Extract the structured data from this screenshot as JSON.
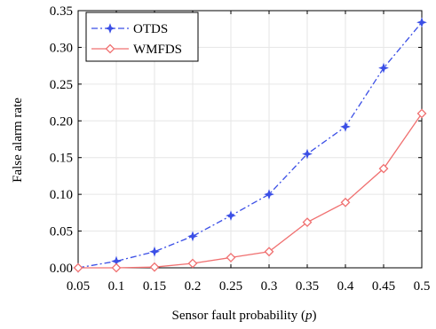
{
  "chart_data": {
    "type": "line",
    "title": "",
    "xlabel": "Sensor fault probability (",
    "xlabel_var": "p",
    "xlabel_end": ")",
    "ylabel": "False alarm rate",
    "x": [
      0.05,
      0.1,
      0.15,
      0.2,
      0.25,
      0.3,
      0.35,
      0.4,
      0.45,
      0.5
    ],
    "xticks": [
      "0.05",
      "0.1",
      "0.15",
      "0.2",
      "0.25",
      "0.3",
      "0.35",
      "0.4",
      "0.45",
      "0.5"
    ],
    "yticks": [
      "0.00",
      "0.05",
      "0.10",
      "0.15",
      "0.20",
      "0.25",
      "0.30",
      "0.35"
    ],
    "xlim": [
      0.05,
      0.5
    ],
    "ylim": [
      0,
      0.35
    ],
    "grid": true,
    "legend_position": "top-left",
    "series": [
      {
        "name": "OTDS",
        "color": "#3b4fe6",
        "marker": "star",
        "line_style": "dash-dot",
        "values": [
          0.0,
          0.009,
          0.022,
          0.043,
          0.071,
          0.1,
          0.155,
          0.192,
          0.272,
          0.334
        ]
      },
      {
        "name": "WMFDS",
        "color": "#f07070",
        "marker": "diamond",
        "line_style": "solid",
        "values": [
          0.0,
          0.0,
          0.001,
          0.006,
          0.014,
          0.022,
          0.062,
          0.089,
          0.135,
          0.21
        ]
      }
    ]
  }
}
